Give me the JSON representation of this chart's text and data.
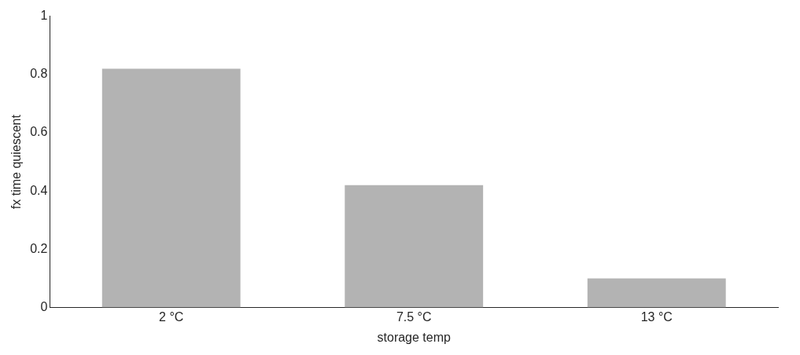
{
  "chart_data": {
    "type": "bar",
    "xlabel": "storage temp",
    "ylabel": "fx time quiescent",
    "categories": [
      "2 °C",
      "7.5 °C",
      "13 °C"
    ],
    "values": [
      0.82,
      0.42,
      0.1
    ],
    "color": "#b3b3b3",
    "ylim": [
      0,
      1
    ],
    "yticks": [
      0,
      0.2,
      0.4,
      0.6,
      0.8,
      1
    ],
    "grid": false
  }
}
